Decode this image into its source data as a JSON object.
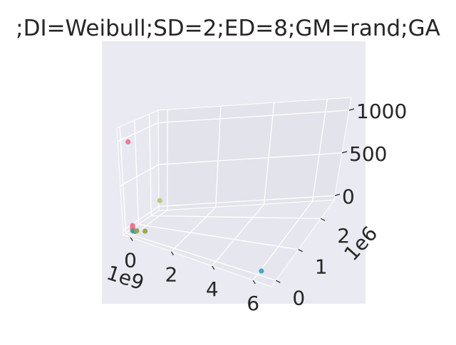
{
  "chart_data": {
    "type": "scatter3d",
    "title": ";DI=Weibull;SD=2;ED=8;GM=rand;GA",
    "x_axis": {
      "scale_label": "1e9",
      "ticks": [
        {
          "value": 0,
          "label": "0"
        },
        {
          "value": 2,
          "label": "2"
        },
        {
          "value": 4,
          "label": "4"
        },
        {
          "value": 6,
          "label": "6"
        }
      ],
      "range": [
        -0.35,
        6.9
      ]
    },
    "y_axis": {
      "scale_label": "1e6",
      "ticks": [
        {
          "value": 0,
          "label": "0"
        },
        {
          "value": 1,
          "label": "1"
        },
        {
          "value": 2,
          "label": "2"
        }
      ],
      "range": [
        -0.2,
        2.6
      ]
    },
    "z_axis": {
      "scale_label": "",
      "ticks": [
        {
          "value": 0,
          "label": "0"
        },
        {
          "value": 500,
          "label": "500"
        },
        {
          "value": 1000,
          "label": "1000"
        }
      ],
      "range": [
        -50,
        1150
      ]
    },
    "points": [
      {
        "x": 0.0,
        "y": 0.0,
        "z": 1000,
        "color": "#f0718f"
      },
      {
        "x": 0.0,
        "y": 0.0,
        "z": 60,
        "color": "#f0718f"
      },
      {
        "x": 0.0,
        "y": 0.0,
        "z": 45,
        "color": "#f0718f"
      },
      {
        "x": 0.0,
        "y": 0.0,
        "z": 30,
        "color": "#f0718f"
      },
      {
        "x": 0.0,
        "y": 0.0,
        "z": 20,
        "color": "#f0718f"
      },
      {
        "x": 0.0,
        "y": 0.0,
        "z": 10,
        "color": "#f0718f"
      },
      {
        "x": 0.05,
        "y": 0.0,
        "z": 5,
        "color": "#e8807a"
      },
      {
        "x": 0.1,
        "y": 0.0,
        "z": 0,
        "color": "#3ba3c8"
      },
      {
        "x": 0.0,
        "y": 0.0,
        "z": 0,
        "color": "#4a9a9a"
      },
      {
        "x": 0.2,
        "y": 0.0,
        "z": 15,
        "color": "#9ca24a"
      },
      {
        "x": 0.6,
        "y": 0.0,
        "z": 40,
        "color": "#9ca24a"
      },
      {
        "x": 0.02,
        "y": 2.0,
        "z": 130,
        "color": "#bcc47a"
      },
      {
        "x": 6.2,
        "y": 0.0,
        "z": 0,
        "color": "#3ba3c8"
      }
    ]
  }
}
